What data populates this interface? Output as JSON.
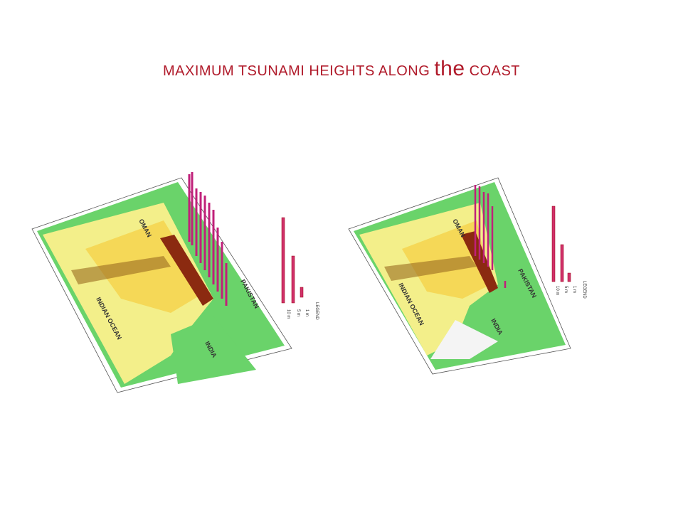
{
  "title": {
    "parts": [
      "MAXIMUM TSUNAMI HEIGHTS ALONG",
      "the",
      "COAST"
    ]
  },
  "maps": [
    {
      "labels": {
        "ocean": "INDIAN OCEAN",
        "pakistan": "PAKISTAN",
        "india": "INDIA",
        "oman": "OMAN"
      },
      "legend": {
        "title": "LEGEND",
        "items": [
          "10 m",
          "5 m",
          "1 m"
        ]
      }
    },
    {
      "labels": {
        "ocean": "INDIAN OCEAN",
        "pakistan": "PAKISTAN",
        "india": "INDIA",
        "oman": "OMAN"
      },
      "legend": {
        "title": "LEGEND",
        "items": [
          "10 m",
          "5 m",
          "1 m"
        ]
      }
    }
  ]
}
